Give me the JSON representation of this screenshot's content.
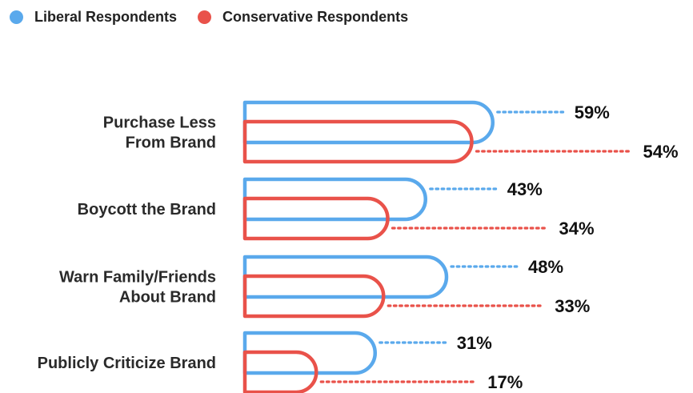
{
  "legend": {
    "liberal_label": "Liberal Respondents",
    "conservative_label": "Conservative Respondents"
  },
  "colors": {
    "liberal": "#5aa9ec",
    "conservative": "#e9524a"
  },
  "chart_data": {
    "type": "bar",
    "orientation": "horizontal",
    "categories": [
      [
        "Purchase Less",
        "From Brand"
      ],
      [
        "Boycott the Brand"
      ],
      [
        "Warn Family/Friends",
        "About Brand"
      ],
      [
        "Publicly Criticize Brand"
      ]
    ],
    "series": [
      {
        "name": "Liberal Respondents",
        "values": [
          59,
          43,
          48,
          31
        ],
        "labels": [
          "59%",
          "43%",
          "48%",
          "31%"
        ]
      },
      {
        "name": "Conservative Respondents",
        "values": [
          54,
          34,
          33,
          17
        ],
        "labels": [
          "54%",
          "34%",
          "33%",
          "17%"
        ]
      }
    ],
    "unit": "%",
    "legend_position": "top-left",
    "grid": false
  }
}
